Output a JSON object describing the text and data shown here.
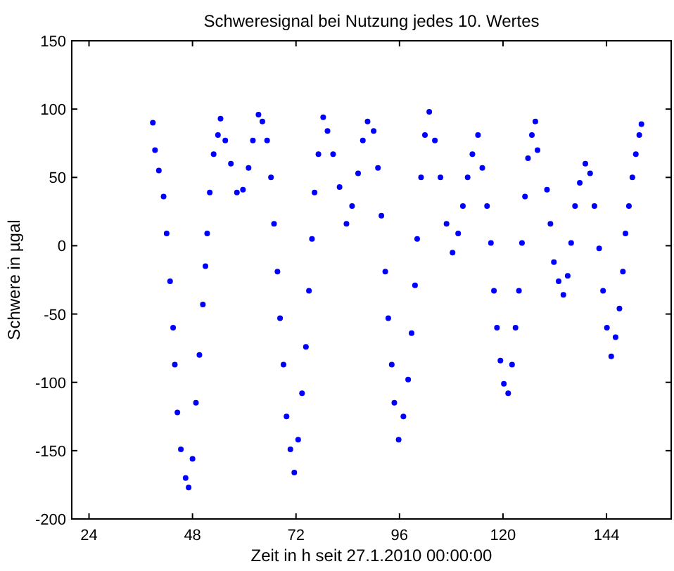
{
  "chart_data": {
    "type": "scatter",
    "title": "Schweresignal bei Nutzung jedes 10. Wertes",
    "xlabel": "Zeit in h seit 27.1.2010 00:00:00",
    "ylabel": "Schwere in µgal",
    "xlim": [
      20,
      159
    ],
    "ylim": [
      -200,
      150
    ],
    "xticks": [
      24,
      48,
      72,
      96,
      120,
      144
    ],
    "yticks": [
      -200,
      -150,
      -100,
      -50,
      0,
      50,
      100,
      150
    ],
    "grid": false,
    "marker": "circle",
    "x": [
      38.8,
      39.3,
      40.2,
      41.3,
      42.0,
      42.8,
      43.5,
      43.9,
      44.5,
      45.3,
      46.4,
      47.1,
      48.0,
      48.8,
      49.6,
      50.4,
      51.0,
      51.4,
      52.0,
      52.9,
      53.9,
      54.5,
      55.6,
      56.9,
      58.3,
      59.7,
      61.0,
      62.0,
      63.3,
      64.2,
      65.3,
      66.2,
      66.9,
      67.7,
      68.3,
      69.1,
      69.8,
      70.7,
      71.6,
      72.5,
      73.4,
      74.3,
      75.0,
      75.7,
      76.3,
      77.2,
      78.3,
      79.3,
      80.6,
      82.1,
      83.7,
      85.0,
      86.4,
      87.5,
      88.6,
      90.0,
      91.0,
      91.8,
      92.7,
      93.4,
      94.2,
      94.8,
      95.8,
      96.9,
      98.0,
      98.8,
      99.6,
      100.1,
      101.0,
      101.9,
      102.9,
      104.2,
      105.5,
      106.9,
      108.3,
      109.6,
      110.7,
      111.8,
      112.9,
      114.2,
      115.2,
      116.3,
      117.2,
      117.9,
      118.6,
      119.4,
      120.2,
      121.2,
      122.1,
      122.9,
      123.7,
      124.4,
      125.1,
      125.8,
      126.7,
      127.5,
      128.0,
      130.2,
      131.0,
      131.8,
      132.9,
      134.0,
      135.0,
      135.8,
      136.7,
      137.8,
      139.1,
      140.2,
      141.2,
      142.3,
      143.2,
      144.1,
      145.1,
      146.1,
      147.0,
      147.8,
      148.4,
      149.2,
      150.0,
      150.8,
      151.6,
      152.1
    ],
    "series": [
      {
        "color": "#0000ff",
        "values": [
          90,
          70,
          55,
          36,
          9,
          -26,
          -60,
          -87,
          -122,
          -149,
          -170,
          -177,
          -156,
          -115,
          -80,
          -43,
          -15,
          9,
          39,
          67,
          81,
          93,
          77,
          60,
          39,
          41,
          57,
          77,
          96,
          91,
          77,
          50,
          16,
          -19,
          -53,
          -87,
          -125,
          -149,
          -166,
          -142,
          -108,
          -74,
          -33,
          5,
          39,
          67,
          94,
          84,
          67,
          43,
          16,
          29,
          53,
          77,
          91,
          84,
          57,
          22,
          -19,
          -53,
          -87,
          -115,
          -142,
          -125,
          -98,
          -64,
          -29,
          5,
          50,
          81,
          98,
          77,
          50,
          16,
          -5,
          9,
          29,
          50,
          67,
          81,
          57,
          29,
          2,
          -33,
          -60,
          -84,
          -101,
          -108,
          -87,
          -60,
          -33,
          2,
          36,
          64,
          81,
          91,
          70,
          41,
          16,
          -12,
          -26,
          -36,
          -22,
          2,
          29,
          46,
          60,
          53,
          29,
          -2,
          -33,
          -60,
          -81,
          -67,
          -46,
          -19,
          9,
          29,
          50,
          67,
          81,
          89
        ]
      }
    ]
  }
}
